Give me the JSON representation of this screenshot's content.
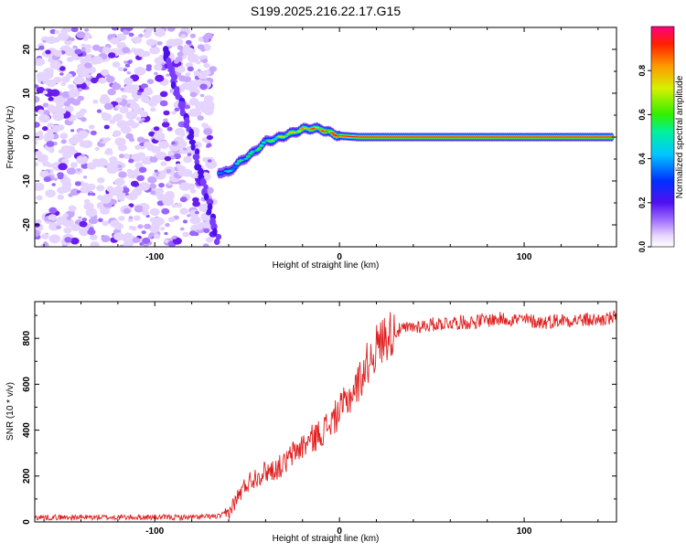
{
  "figure": {
    "title": "S199.2025.216.22.17.G15"
  },
  "chart_data": [
    {
      "type": "heatmap",
      "xlabel": "Height of straight line (km)",
      "ylabel": "Frequency (Hz)",
      "xlim": [
        -165,
        150
      ],
      "ylim": [
        -25,
        25
      ],
      "xticks": [
        -100,
        0,
        100
      ],
      "xtick_labels": [
        "-100",
        "0",
        "100"
      ],
      "yticks": [
        -20,
        -10,
        0,
        10,
        20
      ],
      "ytick_labels": [
        "-20",
        "-10",
        "0",
        "10",
        "20"
      ],
      "grid": false,
      "colorbar": {
        "label": "Normalized spectral amplitude",
        "range": [
          0,
          1
        ],
        "ticks": [
          0.0,
          0.2,
          0.4,
          0.6,
          0.8
        ],
        "tick_labels": [
          "0.0",
          "0.2",
          "0.4",
          "0.6",
          "0.8"
        ],
        "colormap": "rainbow (purple to red)"
      },
      "ridge": {
        "x": [
          -65,
          -60,
          -55,
          -50,
          -45,
          -40,
          -35,
          -30,
          -25,
          -20,
          -15,
          -10,
          -5,
          0,
          10,
          20,
          40,
          60,
          80,
          100,
          120,
          140,
          148
        ],
        "frequency": [
          -8,
          -8,
          -6,
          -4.5,
          -3,
          -1,
          -0.5,
          0.3,
          1,
          1.8,
          2,
          1.8,
          1,
          0.3,
          0,
          0,
          0,
          0,
          0,
          0,
          0,
          0,
          0
        ],
        "amplitude": [
          0.35,
          0.45,
          0.5,
          0.5,
          0.55,
          0.55,
          0.6,
          0.65,
          0.7,
          0.75,
          0.8,
          0.8,
          0.85,
          0.9,
          0.95,
          0.95,
          0.95,
          0.95,
          0.95,
          0.95,
          0.95,
          0.95,
          0.95
        ]
      },
      "noise_region": {
        "x_range": [
          -165,
          -68
        ],
        "amplitude": "0.0-0.15"
      },
      "diagonal_streak": {
        "x": [
          -95,
          -80,
          -65
        ],
        "frequency": [
          20,
          0,
          -25
        ]
      }
    },
    {
      "type": "line",
      "xlabel": "Height of straight line (km)",
      "ylabel": "SNR (10 * v/v)",
      "xlim": [
        -165,
        150
      ],
      "ylim": [
        0,
        960
      ],
      "xticks": [
        -100,
        0,
        100
      ],
      "xtick_labels": [
        "-100",
        "0",
        "100"
      ],
      "yticks": [
        0,
        200,
        400,
        600,
        800
      ],
      "ytick_labels": [
        "0",
        "200",
        "400",
        "600",
        "800"
      ],
      "grid": false,
      "series": [
        {
          "color": "#e02020",
          "x": [
            -165,
            -140,
            -120,
            -100,
            -80,
            -65,
            -60,
            -55,
            -50,
            -45,
            -40,
            -35,
            -30,
            -25,
            -20,
            -15,
            -10,
            -5,
            0,
            5,
            10,
            15,
            20,
            25,
            30,
            40,
            50,
            60,
            70,
            80,
            90,
            100,
            110,
            120,
            130,
            140,
            150
          ],
          "y": [
            20,
            20,
            20,
            20,
            20,
            25,
            40,
            110,
            170,
            200,
            220,
            230,
            250,
            300,
            330,
            360,
            390,
            430,
            480,
            540,
            600,
            690,
            760,
            810,
            830,
            850,
            860,
            870,
            870,
            880,
            885,
            880,
            870,
            880,
            880,
            880,
            890
          ]
        }
      ]
    }
  ]
}
